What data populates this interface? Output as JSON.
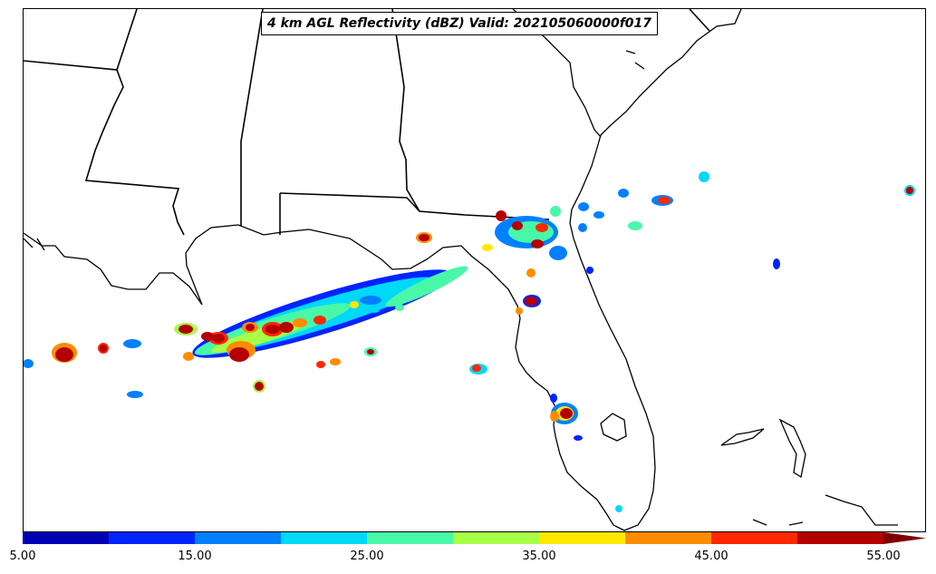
{
  "title": "4 km AGL Reflectivity (dBZ) Valid: 202105060000f017",
  "colorbar": {
    "tick_labels": [
      "5.00",
      "15.00",
      "25.00",
      "35.00",
      "45.00",
      "55.00"
    ],
    "bins": [
      {
        "from": 5,
        "to": 10,
        "color": "#0000b4"
      },
      {
        "from": 10,
        "to": 15,
        "color": "#0024ff"
      },
      {
        "from": 15,
        "to": 20,
        "color": "#0080ff"
      },
      {
        "from": 20,
        "to": 25,
        "color": "#00d8f8"
      },
      {
        "from": 25,
        "to": 30,
        "color": "#48f8a8"
      },
      {
        "from": 30,
        "to": 35,
        "color": "#a8ff48"
      },
      {
        "from": 35,
        "to": 40,
        "color": "#ffe800"
      },
      {
        "from": 40,
        "to": 45,
        "color": "#ff8c00"
      },
      {
        "from": 45,
        "to": 50,
        "color": "#ff2800"
      },
      {
        "from": 50,
        "to": 55,
        "color": "#b40000"
      }
    ],
    "extend": "max",
    "extend_color": "#800000"
  },
  "colors": {
    "coastline": "#000000",
    "state_border": "#000000",
    "background": "#ffffff"
  }
}
